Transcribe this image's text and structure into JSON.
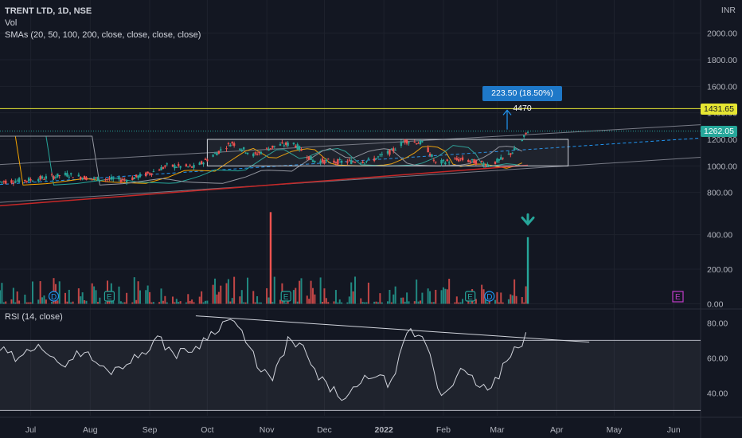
{
  "header": {
    "title": "TRENT LTD, 1D, NSE",
    "vol_label": "Vol",
    "sma_label": "SMAs (20, 50, 100, 200, close, close, close, close)",
    "currency": "INR"
  },
  "rsi_label": "RSI (14, close)",
  "colors": {
    "background": "#131722",
    "grid": "#1e222d",
    "up": "#26a69a",
    "down": "#ef5350",
    "resistance": "#e6e632",
    "current_price": "#26a69a",
    "measure": "#2196f3",
    "earnings_badge": "#c03cc8",
    "trendline": "#d1d4dc",
    "sma200": "#c62828"
  },
  "chart_data": [
    {
      "type": "candlestick",
      "name": "price",
      "x_range": [
        "2021-06-15",
        "2022-06-15"
      ],
      "ylim": [
        690,
        2250
      ],
      "price_tick_labels": [
        "2000.00",
        "1800.00",
        "1600.00",
        "1400.00",
        "1200.00",
        "1000.00",
        "800.00"
      ],
      "price_ticks": [
        2000,
        1800,
        1600,
        1400,
        1200,
        1000,
        800
      ],
      "x_tick_labels": [
        "Jul",
        "Aug",
        "Sep",
        "Oct",
        "Nov",
        "Dec",
        "2022",
        "Feb",
        "Mar",
        "Apr",
        "May",
        "Jun"
      ],
      "x_ticks": [
        "2021-07-01",
        "2021-08-01",
        "2021-09-01",
        "2021-10-01",
        "2021-11-01",
        "2021-12-01",
        "2022-01-01",
        "2022-02-01",
        "2022-03-01",
        "2022-04-01",
        "2022-05-01",
        "2022-06-01"
      ],
      "close_path": [
        [
          "2021-06-15",
          880
        ],
        [
          "2021-07-01",
          895
        ],
        [
          "2021-07-20",
          935
        ],
        [
          "2021-08-01",
          905
        ],
        [
          "2021-08-20",
          895
        ],
        [
          "2021-09-01",
          945
        ],
        [
          "2021-09-10",
          1000
        ],
        [
          "2021-09-25",
          990
        ],
        [
          "2021-10-05",
          1090
        ],
        [
          "2021-10-14",
          1175
        ],
        [
          "2021-10-25",
          1080
        ],
        [
          "2021-11-05",
          1150
        ],
        [
          "2021-11-15",
          1170
        ],
        [
          "2021-11-25",
          1040
        ],
        [
          "2021-12-10",
          1030
        ],
        [
          "2021-12-25",
          1040
        ],
        [
          "2022-01-05",
          1110
        ],
        [
          "2022-01-12",
          1190
        ],
        [
          "2022-01-22",
          1170
        ],
        [
          "2022-01-28",
          1020
        ],
        [
          "2022-02-10",
          1050
        ],
        [
          "2022-02-25",
          1010
        ],
        [
          "2022-03-05",
          1060
        ],
        [
          "2022-03-12",
          1140
        ],
        [
          "2022-03-17",
          1262.05
        ]
      ],
      "current_price": 1262.05,
      "current_price_label": "1262.05",
      "resistance_level": 1431.65,
      "resistance_label": "1431.65",
      "range_box": {
        "x_from": "2021-10-01",
        "x_to": "2022-04-07",
        "y_from": 1000,
        "y_to": 1200
      },
      "channel_mid": [
        [
          "2021-06-15",
          860
        ],
        [
          "2022-06-15",
          1210
        ]
      ],
      "channel_upper": [
        [
          "2021-06-15",
          1010
        ],
        [
          "2022-06-15",
          1310
        ]
      ],
      "channel_lower": [
        [
          "2021-06-15",
          725
        ],
        [
          "2022-06-15",
          1065
        ]
      ],
      "sma200": [
        [
          "2021-06-15",
          700
        ],
        [
          "2022-03-17",
          1005
        ]
      ],
      "projection": {
        "x": "2022-03-17",
        "from": 1262.05,
        "to": 1431.65
      },
      "measure_label": "223.50 (18.50%) 4470"
    },
    {
      "type": "bar",
      "name": "volume",
      "ylim": [
        -30,
        550
      ],
      "tick_labels": [
        "400.00",
        "200.00",
        "0.00"
      ],
      "ticks": [
        400,
        200,
        0
      ],
      "spikes": [
        {
          "x": "2021-11-03",
          "value": 530,
          "direction": "down"
        },
        {
          "x": "2022-03-17",
          "value": 385,
          "direction": "up"
        }
      ],
      "dividend_markers": [
        "2021-07-13",
        "2022-02-25"
      ],
      "dividend_label": "D",
      "earnings_markers": [
        "2021-08-11",
        "2021-11-11",
        "2022-02-15"
      ],
      "earnings_label": "E",
      "arrow_marker": {
        "x": "2022-03-17",
        "value": 470
      }
    },
    {
      "type": "line",
      "name": "rsi",
      "ylim": [
        27,
        87
      ],
      "tick_labels": [
        "80.00",
        "60.00",
        "40.00"
      ],
      "ticks": [
        80,
        60,
        40
      ],
      "band": [
        30,
        70
      ],
      "path": [
        [
          "2021-06-15",
          65
        ],
        [
          "2021-06-25",
          58
        ],
        [
          "2021-07-05",
          70
        ],
        [
          "2021-07-15",
          55
        ],
        [
          "2021-07-28",
          64
        ],
        [
          "2021-08-10",
          52
        ],
        [
          "2021-08-25",
          60
        ],
        [
          "2021-09-05",
          71
        ],
        [
          "2021-09-15",
          62
        ],
        [
          "2021-09-25",
          66
        ],
        [
          "2021-10-07",
          78
        ],
        [
          "2021-10-14",
          83
        ],
        [
          "2021-10-28",
          55
        ],
        [
          "2021-11-04",
          47
        ],
        [
          "2021-11-12",
          70
        ],
        [
          "2021-11-20",
          65
        ],
        [
          "2021-11-28",
          48
        ],
        [
          "2021-12-12",
          36
        ],
        [
          "2021-12-25",
          51
        ],
        [
          "2022-01-05",
          45
        ],
        [
          "2022-01-14",
          76
        ],
        [
          "2022-01-24",
          68
        ],
        [
          "2022-01-30",
          38
        ],
        [
          "2022-02-10",
          52
        ],
        [
          "2022-02-25",
          41
        ],
        [
          "2022-03-05",
          56
        ],
        [
          "2022-03-11",
          65
        ],
        [
          "2022-03-17",
          73
        ]
      ],
      "trendline": [
        [
          "2021-09-25",
          84
        ],
        [
          "2022-04-18",
          69
        ]
      ]
    }
  ]
}
